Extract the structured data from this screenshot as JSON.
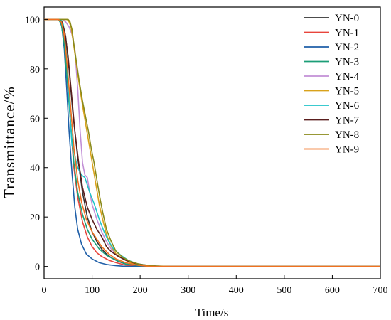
{
  "chart_data": {
    "type": "line",
    "xlabel": "Time/s",
    "ylabel": "Transmittance/%",
    "xlim": [
      0,
      700
    ],
    "ylim": [
      -5,
      105
    ],
    "xticks": [
      0,
      100,
      200,
      300,
      400,
      500,
      600,
      700
    ],
    "yticks": [
      0,
      20,
      40,
      60,
      80,
      100
    ],
    "grid": false,
    "legend_position": "top-right",
    "series": [
      {
        "name": "YN-0",
        "color": "#333333",
        "points": [
          [
            0,
            100
          ],
          [
            30,
            100
          ],
          [
            38,
            99
          ],
          [
            45,
            93
          ],
          [
            52,
            80
          ],
          [
            60,
            62
          ],
          [
            70,
            44
          ],
          [
            80,
            30
          ],
          [
            90,
            20
          ],
          [
            100,
            14
          ],
          [
            110,
            10
          ],
          [
            120,
            7
          ],
          [
            130,
            5
          ],
          [
            140,
            3.5
          ],
          [
            155,
            2
          ],
          [
            170,
            1
          ],
          [
            190,
            0.3
          ],
          [
            220,
            0
          ],
          [
            700,
            0
          ]
        ]
      },
      {
        "name": "YN-1",
        "color": "#e8453c",
        "points": [
          [
            0,
            100
          ],
          [
            30,
            100
          ],
          [
            36,
            99
          ],
          [
            42,
            93
          ],
          [
            48,
            78
          ],
          [
            55,
            58
          ],
          [
            62,
            40
          ],
          [
            70,
            28
          ],
          [
            80,
            18
          ],
          [
            90,
            12
          ],
          [
            100,
            8
          ],
          [
            110,
            5.5
          ],
          [
            120,
            4
          ],
          [
            135,
            2.5
          ],
          [
            150,
            1.5
          ],
          [
            170,
            0.5
          ],
          [
            200,
            0
          ],
          [
            700,
            0
          ]
        ]
      },
      {
        "name": "YN-2",
        "color": "#1f5fa8",
        "points": [
          [
            0,
            100
          ],
          [
            32,
            100
          ],
          [
            37,
            97
          ],
          [
            42,
            88
          ],
          [
            47,
            72
          ],
          [
            52,
            55
          ],
          [
            58,
            38
          ],
          [
            64,
            24
          ],
          [
            70,
            15
          ],
          [
            78,
            9
          ],
          [
            88,
            5
          ],
          [
            100,
            3
          ],
          [
            115,
            1.5
          ],
          [
            130,
            0.8
          ],
          [
            150,
            0.3
          ],
          [
            170,
            0
          ],
          [
            700,
            0
          ]
        ]
      },
      {
        "name": "YN-3",
        "color": "#1b9e77",
        "points": [
          [
            0,
            100
          ],
          [
            30,
            100
          ],
          [
            36,
            98
          ],
          [
            42,
            90
          ],
          [
            48,
            76
          ],
          [
            55,
            58
          ],
          [
            62,
            42
          ],
          [
            70,
            30
          ],
          [
            80,
            21
          ],
          [
            90,
            15
          ],
          [
            100,
            11
          ],
          [
            115,
            7
          ],
          [
            130,
            4.5
          ],
          [
            150,
            2.5
          ],
          [
            170,
            1
          ],
          [
            200,
            0.3
          ],
          [
            230,
            0
          ],
          [
            700,
            0
          ]
        ]
      },
      {
        "name": "YN-4",
        "color": "#c28fd6",
        "points": [
          [
            0,
            100
          ],
          [
            38,
            100
          ],
          [
            45,
            99
          ],
          [
            52,
            97
          ],
          [
            58,
            94
          ],
          [
            64,
            88
          ],
          [
            70,
            72
          ],
          [
            75,
            55
          ],
          [
            80,
            42
          ],
          [
            85,
            37
          ],
          [
            90,
            36
          ],
          [
            95,
            30
          ],
          [
            100,
            25
          ],
          [
            110,
            19
          ],
          [
            120,
            14
          ],
          [
            130,
            10
          ],
          [
            140,
            7
          ],
          [
            150,
            5
          ],
          [
            165,
            3
          ],
          [
            180,
            1.5
          ],
          [
            200,
            0.5
          ],
          [
            230,
            0
          ],
          [
            700,
            0
          ]
        ]
      },
      {
        "name": "YN-5",
        "color": "#d9a21b",
        "points": [
          [
            0,
            100
          ],
          [
            48,
            100
          ],
          [
            52,
            99
          ],
          [
            56,
            97
          ],
          [
            60,
            92
          ],
          [
            65,
            85
          ],
          [
            70,
            78
          ],
          [
            76,
            70
          ],
          [
            82,
            63
          ],
          [
            88,
            56
          ],
          [
            95,
            48
          ],
          [
            102,
            40
          ],
          [
            108,
            33
          ],
          [
            115,
            25
          ],
          [
            122,
            19
          ],
          [
            130,
            13
          ],
          [
            140,
            8
          ],
          [
            150,
            5
          ],
          [
            165,
            3
          ],
          [
            180,
            1.5
          ],
          [
            200,
            0.5
          ],
          [
            230,
            0
          ],
          [
            700,
            0
          ]
        ]
      },
      {
        "name": "YN-6",
        "color": "#1fc3c8",
        "points": [
          [
            0,
            100
          ],
          [
            35,
            100
          ],
          [
            40,
            98
          ],
          [
            45,
            90
          ],
          [
            50,
            76
          ],
          [
            55,
            58
          ],
          [
            58,
            49
          ],
          [
            62,
            47
          ],
          [
            66,
            43
          ],
          [
            70,
            40
          ],
          [
            78,
            37
          ],
          [
            85,
            36
          ],
          [
            95,
            30
          ],
          [
            105,
            25
          ],
          [
            115,
            19
          ],
          [
            125,
            14
          ],
          [
            135,
            10
          ],
          [
            145,
            7
          ],
          [
            160,
            4.5
          ],
          [
            175,
            2.5
          ],
          [
            195,
            1
          ],
          [
            220,
            0.3
          ],
          [
            250,
            0
          ],
          [
            700,
            0
          ]
        ]
      },
      {
        "name": "YN-7",
        "color": "#5a1e1e",
        "points": [
          [
            0,
            100
          ],
          [
            30,
            100
          ],
          [
            37,
            99
          ],
          [
            43,
            95
          ],
          [
            50,
            85
          ],
          [
            57,
            70
          ],
          [
            64,
            55
          ],
          [
            72,
            42
          ],
          [
            80,
            32
          ],
          [
            90,
            24
          ],
          [
            100,
            19
          ],
          [
            110,
            15
          ],
          [
            120,
            12
          ],
          [
            130,
            8
          ],
          [
            140,
            6
          ],
          [
            155,
            4
          ],
          [
            170,
            2.5
          ],
          [
            190,
            1.2
          ],
          [
            215,
            0.4
          ],
          [
            240,
            0
          ],
          [
            700,
            0
          ]
        ]
      },
      {
        "name": "YN-8",
        "color": "#8a8a1a",
        "points": [
          [
            0,
            100
          ],
          [
            50,
            100
          ],
          [
            54,
            99
          ],
          [
            58,
            96
          ],
          [
            62,
            90
          ],
          [
            68,
            82
          ],
          [
            74,
            74
          ],
          [
            80,
            67
          ],
          [
            86,
            61
          ],
          [
            92,
            55
          ],
          [
            98,
            48
          ],
          [
            104,
            42
          ],
          [
            110,
            35
          ],
          [
            116,
            28
          ],
          [
            122,
            22
          ],
          [
            130,
            15
          ],
          [
            140,
            10
          ],
          [
            150,
            6
          ],
          [
            165,
            3.5
          ],
          [
            180,
            2
          ],
          [
            200,
            0.8
          ],
          [
            230,
            0.2
          ],
          [
            260,
            0
          ],
          [
            700,
            0
          ]
        ]
      },
      {
        "name": "YN-9",
        "color": "#f07020",
        "points": [
          [
            0,
            100
          ],
          [
            30,
            100
          ],
          [
            36,
            99
          ],
          [
            42,
            94
          ],
          [
            48,
            82
          ],
          [
            55,
            65
          ],
          [
            62,
            48
          ],
          [
            70,
            35
          ],
          [
            78,
            26
          ],
          [
            88,
            19
          ],
          [
            100,
            14
          ],
          [
            110,
            11
          ],
          [
            120,
            8
          ],
          [
            135,
            5
          ],
          [
            150,
            3
          ],
          [
            170,
            1.5
          ],
          [
            195,
            0.5
          ],
          [
            220,
            0
          ],
          [
            700,
            0
          ]
        ]
      }
    ]
  }
}
